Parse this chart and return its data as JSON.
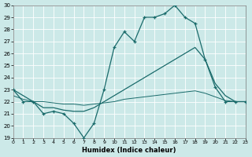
{
  "xlabel": "Humidex (Indice chaleur)",
  "xlim": [
    0,
    23
  ],
  "ylim": [
    19,
    30
  ],
  "yticks": [
    19,
    20,
    21,
    22,
    23,
    24,
    25,
    26,
    27,
    28,
    29,
    30
  ],
  "xticks": [
    0,
    1,
    2,
    3,
    4,
    5,
    6,
    7,
    8,
    9,
    10,
    11,
    12,
    13,
    14,
    15,
    16,
    17,
    18,
    19,
    20,
    21,
    22,
    23
  ],
  "bg_color": "#cce9e8",
  "line_color": "#1a6b6b",
  "grid_color": "#ffffff",
  "line1_x": [
    0,
    1,
    2,
    3,
    4,
    5,
    6,
    7,
    8,
    9,
    10,
    11,
    12,
    13,
    14,
    15,
    16,
    17,
    18,
    19,
    20,
    21,
    22,
    23
  ],
  "line1_y": [
    23.0,
    22.0,
    22.0,
    21.0,
    21.2,
    21.0,
    20.2,
    19.0,
    20.2,
    23.0,
    26.5,
    27.8,
    27.0,
    29.0,
    29.0,
    29.3,
    30.0,
    29.0,
    28.5,
    25.5,
    23.2,
    22.0,
    22.0,
    22.0
  ],
  "line2_x": [
    0,
    1,
    2,
    3,
    4,
    5,
    6,
    7,
    8,
    9,
    10,
    11,
    12,
    13,
    14,
    15,
    16,
    17,
    18,
    19,
    20,
    21,
    22,
    23
  ],
  "line2_y": [
    23.0,
    22.5,
    22.0,
    21.5,
    21.5,
    21.3,
    21.2,
    21.2,
    21.5,
    22.0,
    22.5,
    23.0,
    23.5,
    24.0,
    24.5,
    25.0,
    25.5,
    26.0,
    26.5,
    25.5,
    23.5,
    22.5,
    22.0,
    22.0
  ],
  "line3_x": [
    0,
    1,
    2,
    3,
    4,
    5,
    6,
    7,
    8,
    9,
    10,
    11,
    12,
    13,
    14,
    15,
    16,
    17,
    18,
    19,
    20,
    21,
    22,
    23
  ],
  "line3_y": [
    22.5,
    22.2,
    22.0,
    22.0,
    21.9,
    21.8,
    21.8,
    21.7,
    21.8,
    21.9,
    22.0,
    22.2,
    22.3,
    22.4,
    22.5,
    22.6,
    22.7,
    22.8,
    22.9,
    22.7,
    22.4,
    22.1,
    22.0,
    22.0
  ]
}
